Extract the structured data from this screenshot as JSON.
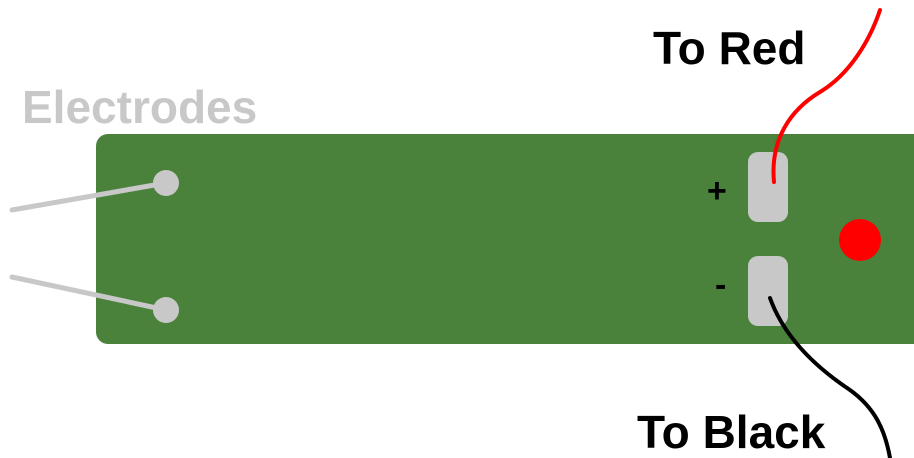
{
  "labels": {
    "electrodes": "Electrodes",
    "to_red": "To Red",
    "to_black": "To Black",
    "plus": "+",
    "minus": "-"
  },
  "colors": {
    "board": "#4a823c",
    "pad": "#c8c8c8",
    "electrode_wire": "#c8c8c8",
    "electrodes_label": "#c8c8c8",
    "red_wire": "#ff0000",
    "black_wire": "#000000",
    "led": "#ff0000",
    "text": "#000000"
  }
}
